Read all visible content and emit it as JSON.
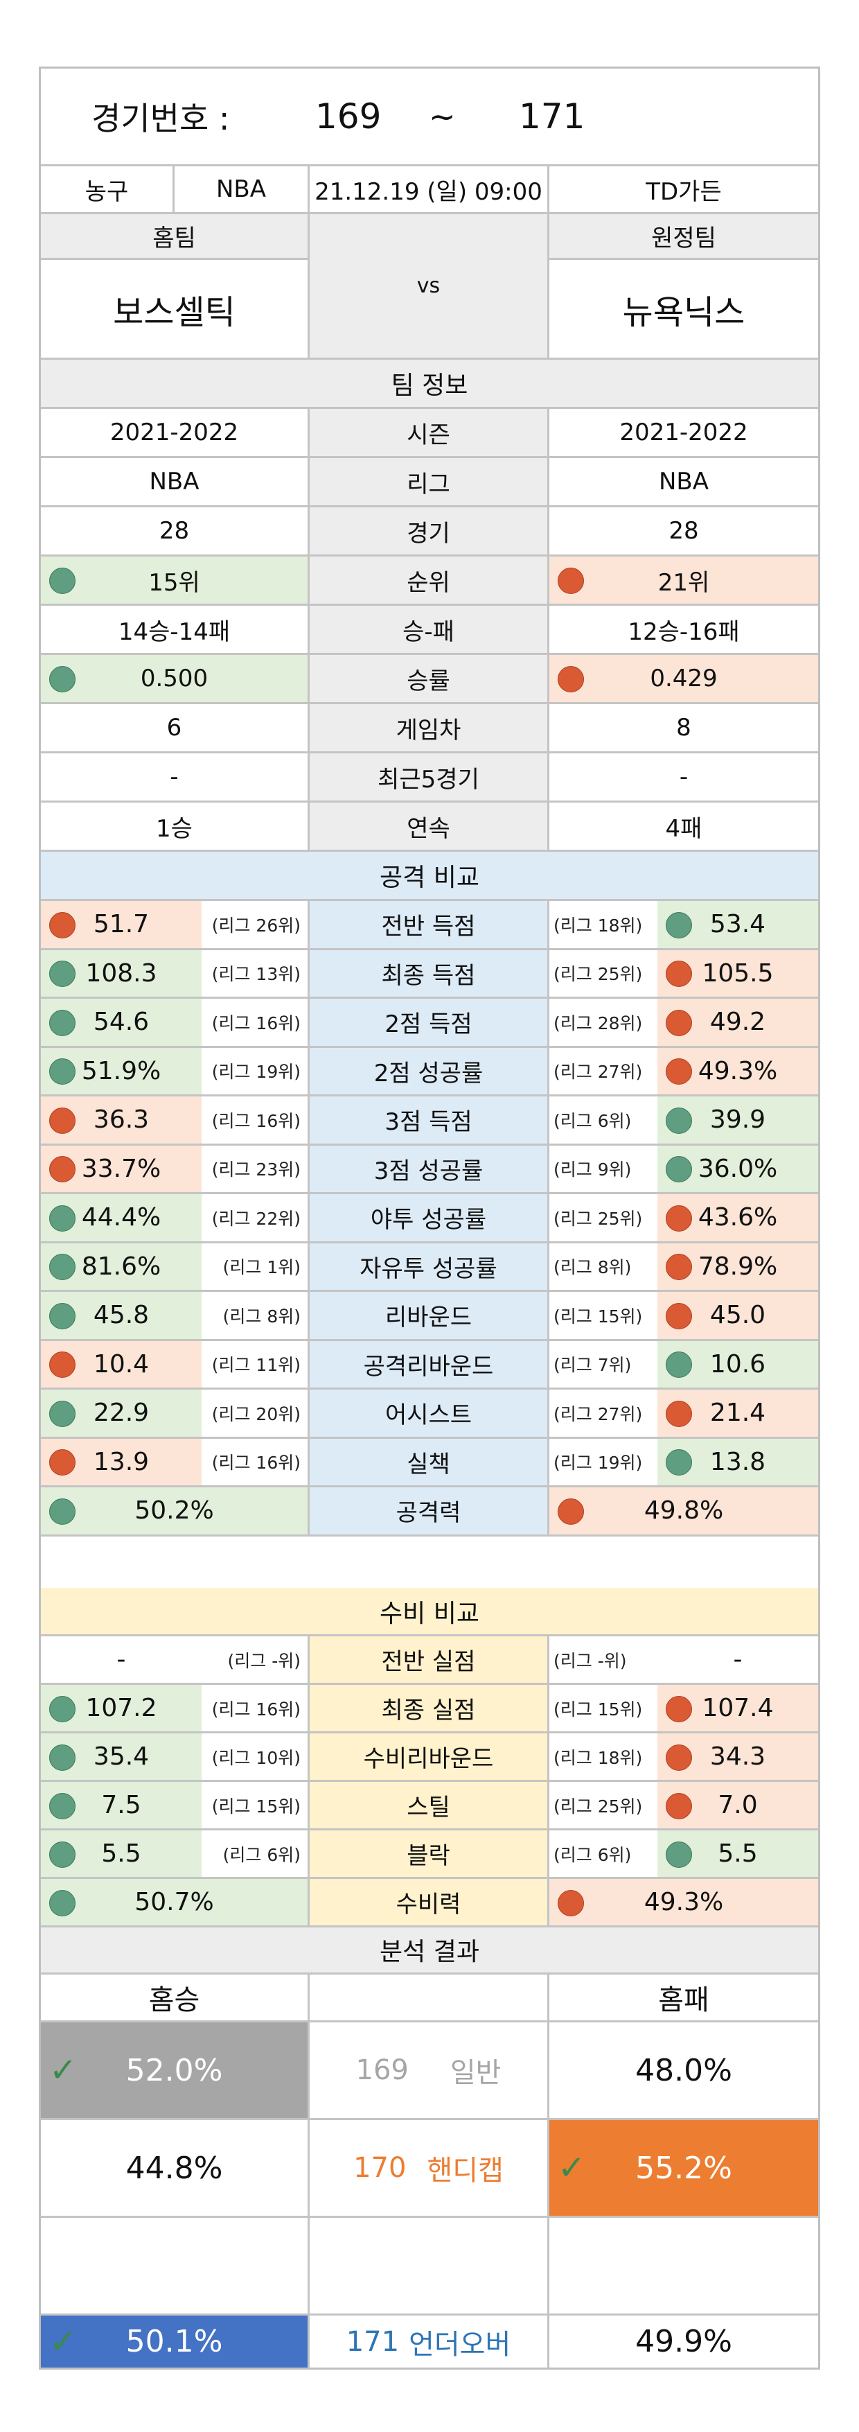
{
  "header": {
    "label": "경기번호 :",
    "start": "169",
    "tilde": "~",
    "end": "171"
  },
  "info": {
    "sport": "농구",
    "league": "NBA",
    "datetime": "21.12.19 (일) 09:00",
    "venue": "TD가든"
  },
  "teams": {
    "home_label": "홈팀",
    "away_label": "원정팀",
    "vs": "vs",
    "home_name": "보스셀틱",
    "away_name": "뉴욕닉스"
  },
  "team_info": {
    "title": "팀 정보",
    "rows": [
      {
        "home": "2021-2022",
        "label": "시즌",
        "away": "2021-2022"
      },
      {
        "home": "NBA",
        "label": "리그",
        "away": "NBA"
      },
      {
        "home": "28",
        "label": "경기",
        "away": "28"
      },
      {
        "home": "15위",
        "label": "순위",
        "away": "21위"
      },
      {
        "home": "14승-14패",
        "label": "승-패",
        "away": "12승-16패"
      },
      {
        "home": "0.500",
        "label": "승률",
        "away": "0.429"
      },
      {
        "home": "6",
        "label": "게임차",
        "away": "8"
      },
      {
        "home": "-",
        "label": "최근5경기",
        "away": "-"
      },
      {
        "home": "1승",
        "label": "연속",
        "away": "4패"
      }
    ]
  },
  "attack": {
    "title": "공격 비교",
    "rows": [
      {
        "home": "51.7",
        "home_rank": "(리그 26위)",
        "label": "전반 득점",
        "away_rank": "(리그 18위)",
        "away": "53.4"
      },
      {
        "home": "108.3",
        "home_rank": "(리그 13위)",
        "label": "최종 득점",
        "away_rank": "(리그 25위)",
        "away": "105.5"
      },
      {
        "home": "54.6",
        "home_rank": "(리그 16위)",
        "label": "2점 득점",
        "away_rank": "(리그 28위)",
        "away": "49.2"
      },
      {
        "home": "51.9%",
        "home_rank": "(리그 19위)",
        "label": "2점 성공률",
        "away_rank": "(리그 27위)",
        "away": "49.3%"
      },
      {
        "home": "36.3",
        "home_rank": "(리그 16위)",
        "label": "3점 득점",
        "away_rank": "(리그 6위)",
        "away": "39.9"
      },
      {
        "home": "33.7%",
        "home_rank": "(리그 23위)",
        "label": "3점 성공률",
        "away_rank": "(리그 9위)",
        "away": "36.0%"
      },
      {
        "home": "44.4%",
        "home_rank": "(리그 22위)",
        "label": "야투 성공률",
        "away_rank": "(리그 25위)",
        "away": "43.6%"
      },
      {
        "home": "81.6%",
        "home_rank": "(리그 1위)",
        "label": "자유투 성공률",
        "away_rank": "(리그 8위)",
        "away": "78.9%"
      },
      {
        "home": "45.8",
        "home_rank": "(리그 8위)",
        "label": "리바운드",
        "away_rank": "(리그 15위)",
        "away": "45.0"
      },
      {
        "home": "10.4",
        "home_rank": "(리그 11위)",
        "label": "공격리바운드",
        "away_rank": "(리그 7위)",
        "away": "10.6"
      },
      {
        "home": "22.9",
        "home_rank": "(리그 20위)",
        "label": "어시스트",
        "away_rank": "(리그 27위)",
        "away": "21.4"
      },
      {
        "home": "13.9",
        "home_rank": "(리그 16위)",
        "label": "실책",
        "away_rank": "(리그 19위)",
        "away": "13.8"
      }
    ],
    "power": {
      "home": "50.2%",
      "label": "공격력",
      "away": "49.8%"
    }
  },
  "defense": {
    "title": "수비 비교",
    "rows": [
      {
        "home": "-",
        "home_rank": "(리그 -위)",
        "label": "전반 실점",
        "away_rank": "(리그 -위)",
        "away": "-"
      },
      {
        "home": "107.2",
        "home_rank": "(리그 16위)",
        "label": "최종 실점",
        "away_rank": "(리그 15위)",
        "away": "107.4"
      },
      {
        "home": "35.4",
        "home_rank": "(리그 10위)",
        "label": "수비리바운드",
        "away_rank": "(리그 18위)",
        "away": "34.3"
      },
      {
        "home": "7.5",
        "home_rank": "(리그 15위)",
        "label": "스틸",
        "away_rank": "(리그 25위)",
        "away": "7.0"
      },
      {
        "home": "5.5",
        "home_rank": "(리그 6위)",
        "label": "블락",
        "away_rank": "(리그 6위)",
        "away": "5.5"
      }
    ],
    "power": {
      "home": "50.7%",
      "label": "수비력",
      "away": "49.3%"
    }
  },
  "result": {
    "title": "분석 결과",
    "home_label": "홈승",
    "away_label": "홈패",
    "normal": {
      "num": "169",
      "name": "일반",
      "home": "52.0%",
      "away": "48.0%"
    },
    "handicap": {
      "num": "170",
      "name": "핸디캡",
      "home": "44.8%",
      "away": "55.2%"
    },
    "underover": {
      "num": "171",
      "name": "언더오버",
      "home": "50.1%",
      "away": "49.9%"
    }
  },
  "colors": {
    "dot_green": "#5f9e80",
    "dot_red": "#d95a33",
    "handicap_orange": "#ed7d31",
    "underover_blue": "#4472c4",
    "normal_gray": "#a6a6a6"
  },
  "icons": {
    "dot": "status-dot",
    "check": "check-icon"
  }
}
